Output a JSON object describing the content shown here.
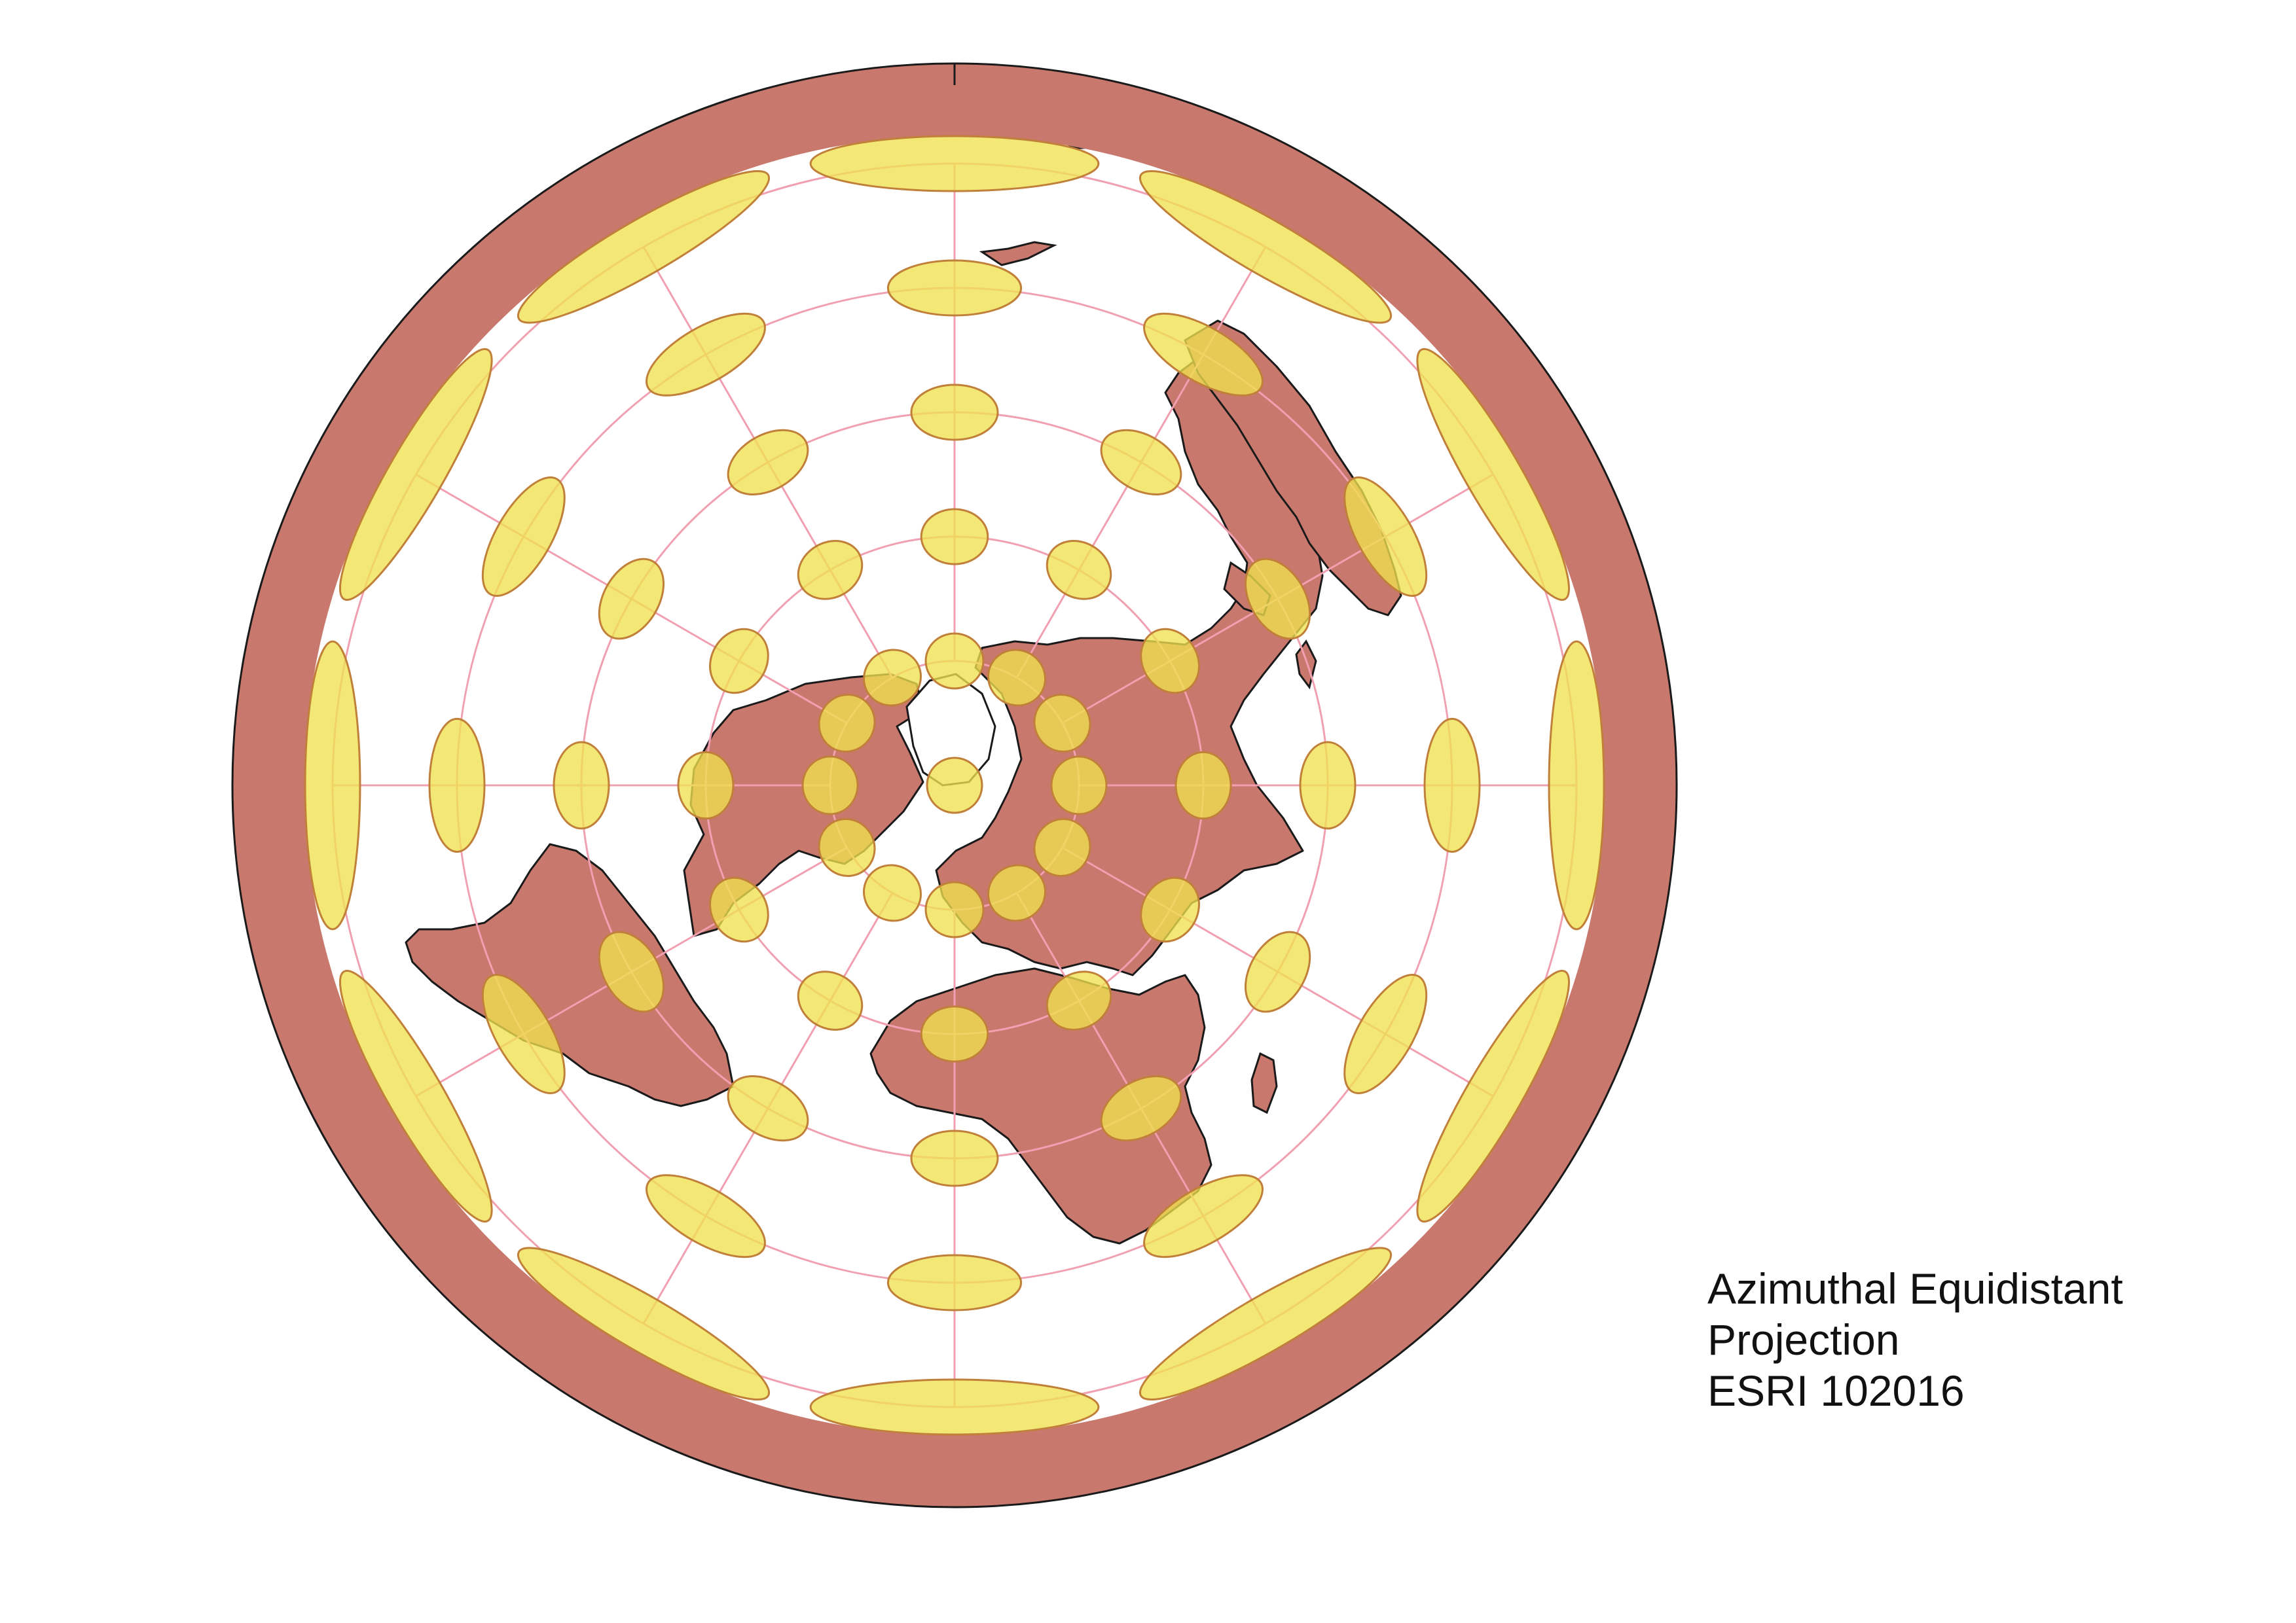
{
  "caption": {
    "line1": "Azimuthal Equidistant",
    "line2": "Projection",
    "line3": "ESRI 102016"
  },
  "map": {
    "projection": "Azimuthal Equidistant",
    "center": "North Pole",
    "colors": {
      "land": "#c8786c",
      "outline": "#1a1a1a",
      "ocean": "#ffffff",
      "graticule": "#f0a0b0",
      "tissot_fill": "#f0e050",
      "tissot_stroke": "#c0803a"
    },
    "graticule": {
      "latitude_step_deg": 30,
      "longitude_step_deg": 30
    },
    "tissot_indicatrices": {
      "latitudes_deg": [
        60,
        30,
        0,
        -30,
        -60
      ],
      "longitude_step_deg": 30
    }
  }
}
